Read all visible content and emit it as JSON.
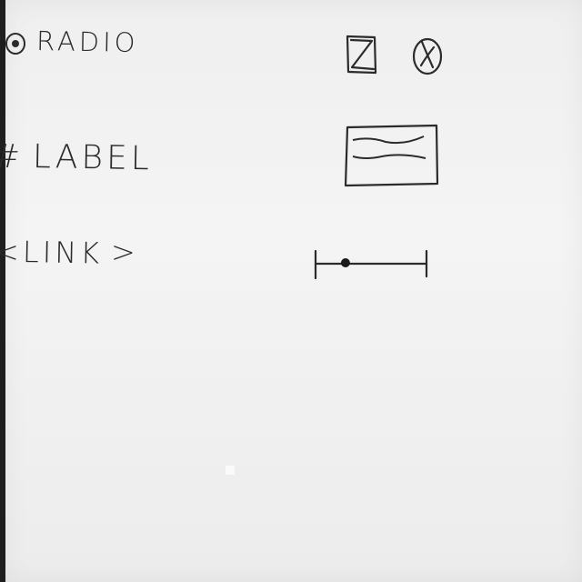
{
  "sketch": {
    "radio_label": "RADIO",
    "label_label": "LABEL",
    "link_label": "LINK"
  },
  "icons": {
    "radio": "radio-button-icon",
    "checkbox": "checked-checkbox-icon",
    "circle_x": "circled-x-icon",
    "textarea": "multiline-text-field",
    "slider": "range-slider"
  },
  "slider": {
    "value": 0.27
  }
}
